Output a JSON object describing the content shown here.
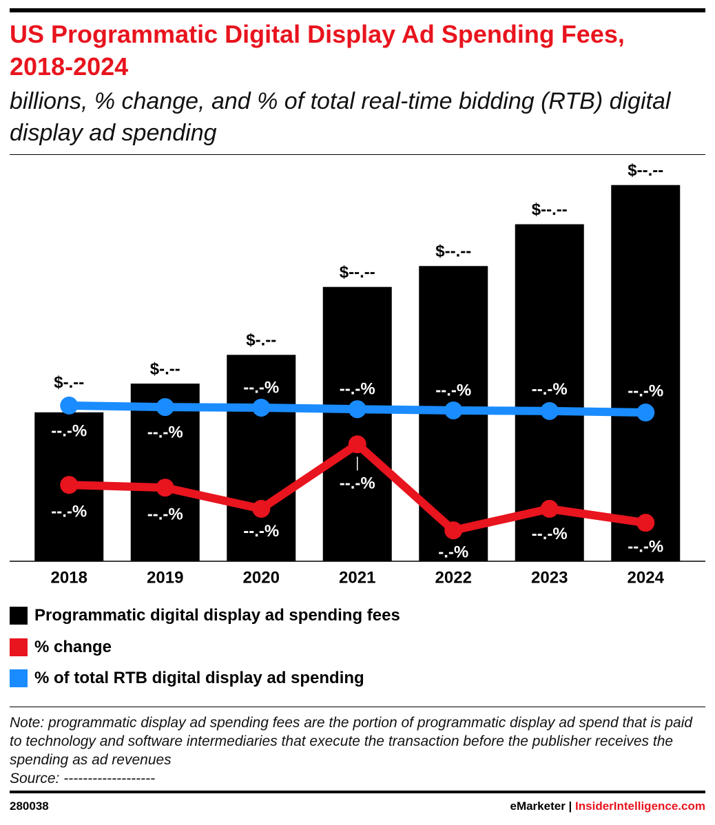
{
  "chart_data": {
    "type": "bar",
    "title": "US Programmatic Digital Display Ad Spending Fees, 2018-2024",
    "subtitle": "billions, % change, and % of total real-time bidding (RTB) digital display ad spending",
    "categories": [
      "2018",
      "2019",
      "2020",
      "2021",
      "2022",
      "2023",
      "2024"
    ],
    "ylim": [
      0,
      16
    ],
    "y2lim": [
      -2,
      136
    ],
    "series": [
      {
        "name": "Programmatic digital display ad spending fees",
        "type": "bar",
        "color": "#000000",
        "values": [
          5.7,
          6.8,
          7.9,
          10.5,
          11.3,
          12.9,
          14.4
        ],
        "value_labels": [
          "$-.--",
          "$-.--",
          "$-.--",
          "$--.--",
          "$--.--",
          "$--.--",
          "$--.--"
        ]
      },
      {
        "name": "% change",
        "type": "line",
        "axis": "y2",
        "color": "#e8141e",
        "values": [
          23.2,
          22.3,
          15.3,
          36.6,
          8.2,
          15.3,
          10.7
        ],
        "value_labels": [
          "--.-%",
          "--.-%",
          "--.-%",
          "--.-%",
          "-.-%",
          "--.-%",
          "--.-%"
        ]
      },
      {
        "name": "% of total RTB digital display ad spending",
        "type": "line",
        "axis": "y2",
        "color": "#1a8cff",
        "values": [
          49.4,
          48.9,
          48.7,
          48.2,
          47.8,
          47.6,
          47.1
        ],
        "value_labels": [
          "--.-%",
          "--.-%",
          "--.-%",
          "--.-%",
          "--.-%",
          "--.-%",
          "--.-%"
        ]
      }
    ]
  },
  "note": "Note: programmatic display ad spending fees are the portion of programmatic display ad spend that is paid to technology and software intermediaries that execute the transaction before the publisher receives the spending as ad revenues",
  "source": "Source: -------------------",
  "footer": {
    "id": "280038",
    "brand": "eMarketer",
    "separator": "|",
    "site": "InsiderIntelligence.com"
  }
}
